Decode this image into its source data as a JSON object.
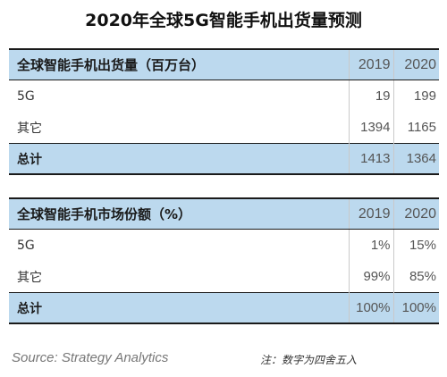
{
  "title": "2020年全球5G智能手机出货量预测",
  "shipments": {
    "header": "全球智能手机出货量（百万台）",
    "years": [
      "2019",
      "2020"
    ],
    "rows": [
      {
        "label": "5G",
        "values": [
          "19",
          "199"
        ]
      },
      {
        "label": "其它",
        "values": [
          "1394",
          "1165"
        ]
      }
    ],
    "total": {
      "label": "总计",
      "values": [
        "1413",
        "1364"
      ]
    }
  },
  "share": {
    "header": "全球智能手机市场份额（%）",
    "years": [
      "2019",
      "2020"
    ],
    "rows": [
      {
        "label": "5G",
        "values": [
          "1%",
          "15%"
        ]
      },
      {
        "label": "其它",
        "values": [
          "99%",
          "85%"
        ]
      }
    ],
    "total": {
      "label": "总计",
      "values": [
        "100%",
        "100%"
      ]
    }
  },
  "source": "Source: Strategy Analytics",
  "note": "注：数字为四舍五入",
  "colors": {
    "header_fill": "#bcd9ee",
    "border": "#1a1a1a"
  }
}
